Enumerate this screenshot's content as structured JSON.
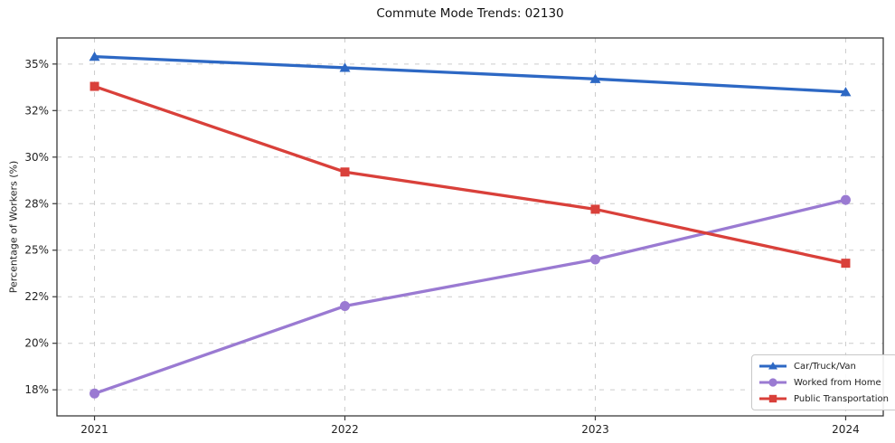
{
  "title": "Commute Mode Trends: 02130",
  "chart_data": {
    "type": "line",
    "title": "Commute Mode Trends: 02130",
    "xlabel": "",
    "ylabel": "Percentage of Workers (%)",
    "x": [
      2021,
      2022,
      2023,
      2024
    ],
    "series": [
      {
        "name": "Car/Truck/Van",
        "values": [
          35.4,
          34.8,
          34.2,
          33.5
        ],
        "color": "#2d68c4",
        "marker": "triangle"
      },
      {
        "name": "Worked from Home",
        "values": [
          17.3,
          22.0,
          24.5,
          27.7
        ],
        "color": "#9a7ad2",
        "marker": "circle"
      },
      {
        "name": "Public Transportation",
        "values": [
          33.8,
          29.2,
          27.2,
          24.3
        ],
        "color": "#d9403a",
        "marker": "square"
      }
    ],
    "xticks": [
      {
        "value": 2021,
        "label": "2021"
      },
      {
        "value": 2022,
        "label": "2022"
      },
      {
        "value": 2023,
        "label": "2023"
      },
      {
        "value": 2024,
        "label": "2024"
      }
    ],
    "yticks": [
      {
        "value": 17.5,
        "label": "18%"
      },
      {
        "value": 20.0,
        "label": "20%"
      },
      {
        "value": 22.5,
        "label": "22%"
      },
      {
        "value": 25.0,
        "label": "25%"
      },
      {
        "value": 27.5,
        "label": "28%"
      },
      {
        "value": 30.0,
        "label": "30%"
      },
      {
        "value": 32.5,
        "label": "32%"
      },
      {
        "value": 35.0,
        "label": "35%"
      }
    ],
    "xlim": [
      2020.85,
      2024.15
    ],
    "ylim": [
      16.1,
      36.4
    ],
    "grid": true,
    "legend_position": "lower right",
    "colors": {
      "background": "#ffffff",
      "grid": "#cccccc",
      "spine": "#3a3a3a",
      "tick_label": "#222222",
      "title": "#111111",
      "legend_border": "#c8c8c8"
    }
  }
}
